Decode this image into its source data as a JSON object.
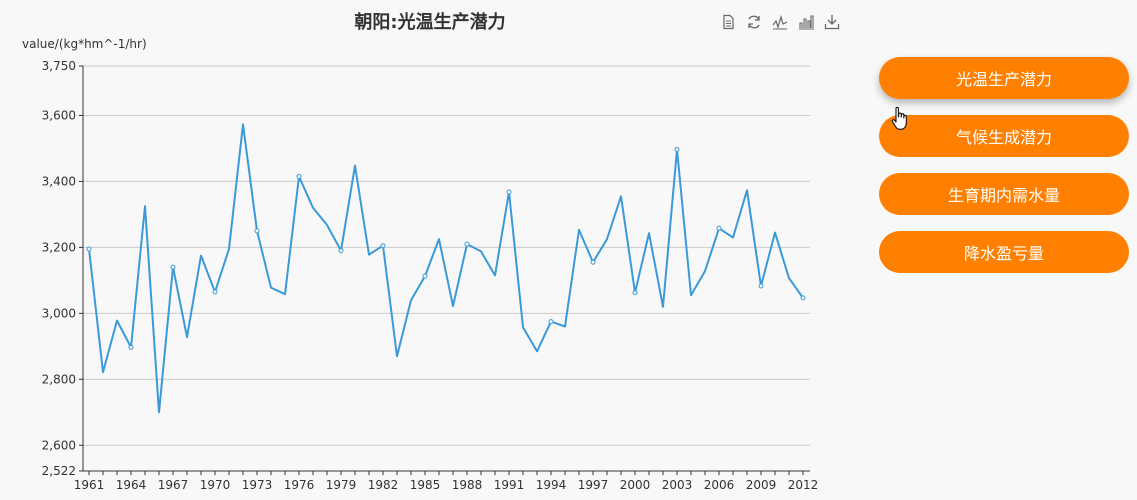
{
  "title": "朝阳:光温生产潜力",
  "buttons": [
    {
      "label": "光温生产潜力",
      "active": true
    },
    {
      "label": "气候生成潜力",
      "active": false
    },
    {
      "label": "生育期内需水量",
      "active": false
    },
    {
      "label": "降水盈亏量",
      "active": false
    }
  ],
  "toolbox": [
    "data-view-icon",
    "restore-icon",
    "line-chart-icon",
    "bar-chart-icon",
    "download-icon"
  ],
  "colors": {
    "line": "#3a9ad9",
    "button": "#ff8000",
    "grid": "#cccccc",
    "axis": "#333333"
  },
  "chart_data": {
    "type": "line",
    "title": "朝阳:光温生产潜力",
    "ylabel": "value/(kg*hm^-1/hr)",
    "xlabel": "",
    "ylim": [
      2522,
      3750
    ],
    "yticks": [
      "2,522",
      "2,600",
      "2,800",
      "3,000",
      "3,200",
      "3,400",
      "3,600",
      "3,750"
    ],
    "ytick_values": [
      2522,
      2600,
      2800,
      3000,
      3200,
      3400,
      3600,
      3750
    ],
    "x_tick_labels": [
      "1961",
      "1964",
      "1967",
      "1970",
      "1973",
      "1976",
      "1979",
      "1982",
      "1985",
      "1988",
      "1991",
      "1994",
      "1997",
      "2000",
      "2003",
      "2006",
      "2009",
      "2012"
    ],
    "grid": true,
    "x": [
      1961,
      1962,
      1963,
      1964,
      1965,
      1966,
      1967,
      1968,
      1969,
      1970,
      1971,
      1972,
      1973,
      1974,
      1975,
      1976,
      1977,
      1978,
      1979,
      1980,
      1981,
      1982,
      1983,
      1984,
      1985,
      1986,
      1987,
      1988,
      1989,
      1990,
      1991,
      1992,
      1993,
      1994,
      1995,
      1996,
      1997,
      1998,
      1999,
      2000,
      2001,
      2002,
      2003,
      2004,
      2005,
      2006,
      2007,
      2008,
      2009,
      2010,
      2011,
      2012
    ],
    "series": [
      {
        "values": [
          3195,
          2822,
          2978,
          2897,
          3325,
          2700,
          3140,
          2928,
          3175,
          3065,
          3195,
          3573,
          3250,
          3078,
          3058,
          3415,
          3320,
          3268,
          3190,
          3448,
          3178,
          3205,
          2870,
          3040,
          3113,
          3225,
          3022,
          3210,
          3188,
          3115,
          3368,
          2958,
          2885,
          2975,
          2960,
          3253,
          3155,
          3225,
          3355,
          3063,
          3243,
          3020,
          3497,
          3055,
          3128,
          3258,
          3230,
          3373,
          3083,
          3245,
          3107,
          3047
        ],
        "marked_years": [
          1961,
          1964,
          1967,
          1970,
          1973,
          1976,
          1979,
          1982,
          1985,
          1988,
          1991,
          1994,
          1997,
          2000,
          2003,
          2006,
          2009,
          2012
        ]
      }
    ]
  }
}
